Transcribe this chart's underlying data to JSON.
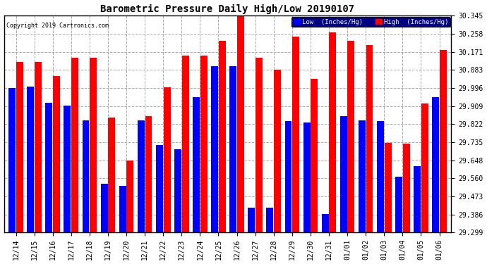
{
  "title": "Barometric Pressure Daily High/Low 20190107",
  "copyright": "Copyright 2019 Cartronics.com",
  "categories": [
    "12/14",
    "12/15",
    "12/16",
    "12/17",
    "12/18",
    "12/19",
    "12/20",
    "12/21",
    "12/22",
    "12/23",
    "12/24",
    "12/25",
    "12/26",
    "12/27",
    "12/28",
    "12/29",
    "12/30",
    "12/31",
    "01/01",
    "01/02",
    "01/03",
    "01/04",
    "01/05",
    "01/06"
  ],
  "low_values": [
    29.996,
    30.002,
    29.924,
    29.913,
    29.84,
    29.535,
    29.524,
    29.84,
    29.72,
    29.7,
    29.952,
    30.103,
    30.102,
    29.42,
    29.42,
    29.838,
    29.83,
    29.39,
    29.86,
    29.84,
    29.838,
    29.568,
    29.62,
    29.952
  ],
  "high_values": [
    30.122,
    30.122,
    30.054,
    30.142,
    30.142,
    29.854,
    29.648,
    29.862,
    30.001,
    30.152,
    30.152,
    30.224,
    30.352,
    30.142,
    30.083,
    30.243,
    30.042,
    30.263,
    30.222,
    30.203,
    29.732,
    29.728,
    29.921,
    30.18
  ],
  "ymin": 29.299,
  "ymax": 30.345,
  "yticks": [
    29.299,
    29.386,
    29.473,
    29.56,
    29.648,
    29.735,
    29.822,
    29.909,
    29.996,
    30.083,
    30.171,
    30.258,
    30.345
  ],
  "low_color": "#0000ff",
  "high_color": "#ff0000",
  "bg_color": "#ffffff",
  "grid_color": "#aaaaaa",
  "legend_low_label": "Low  (Inches/Hg)",
  "legend_high_label": "High  (Inches/Hg)",
  "bar_width": 0.38,
  "bar_gap": 0.03
}
